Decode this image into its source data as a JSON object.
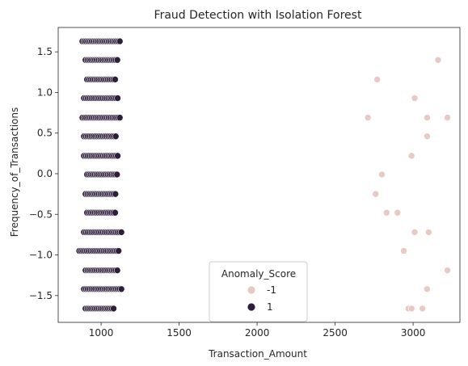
{
  "chart_data": {
    "type": "scatter",
    "title": "Fraud Detection with Isolation Forest",
    "xlabel": "Transaction_Amount",
    "ylabel": "Frequency_of_Transactions",
    "xlim": [
      725,
      3300
    ],
    "ylim": [
      -1.83,
      1.8
    ],
    "xticks": [
      1000,
      1500,
      2000,
      2500,
      3000
    ],
    "yticks": [
      1.5,
      1.0,
      0.5,
      0.0,
      -0.5,
      -1.0,
      -1.5
    ],
    "y_levels": [
      1.63,
      1.4,
      1.16,
      0.93,
      0.69,
      0.46,
      0.22,
      -0.01,
      -0.25,
      -0.48,
      -0.72,
      -0.95,
      -1.19,
      -1.42,
      -1.66
    ],
    "x_ranges": [
      [
        880,
        1130
      ],
      [
        900,
        1110
      ],
      [
        910,
        1100
      ],
      [
        890,
        1110
      ],
      [
        880,
        1130
      ],
      [
        890,
        1100
      ],
      [
        890,
        1110
      ],
      [
        910,
        1110
      ],
      [
        900,
        1100
      ],
      [
        910,
        1100
      ],
      [
        890,
        1130
      ],
      [
        860,
        1120
      ],
      [
        900,
        1110
      ],
      [
        890,
        1130
      ],
      [
        900,
        1090
      ]
    ],
    "legend_title": "Anomaly_Score",
    "grid": false,
    "legend_placement": "lower center",
    "series": [
      {
        "name": "-1",
        "color": "#e8c9c4",
        "points": [
          [
            3160,
            1.4
          ],
          [
            2770,
            1.16
          ],
          [
            3010,
            0.93
          ],
          [
            2710,
            0.69
          ],
          [
            3090,
            0.69
          ],
          [
            3220,
            0.69
          ],
          [
            3090,
            0.46
          ],
          [
            2990,
            0.22
          ],
          [
            2800,
            -0.01
          ],
          [
            2760,
            -0.25
          ],
          [
            2830,
            -0.48
          ],
          [
            2900,
            -0.48
          ],
          [
            3010,
            -0.72
          ],
          [
            3100,
            -0.72
          ],
          [
            2940,
            -0.95
          ],
          [
            3220,
            -1.19
          ],
          [
            3090,
            -1.42
          ],
          [
            2970,
            -1.66
          ],
          [
            2990,
            -1.66
          ],
          [
            3060,
            -1.66
          ]
        ]
      },
      {
        "name": "1",
        "color": "#2e1e3b"
      }
    ]
  }
}
